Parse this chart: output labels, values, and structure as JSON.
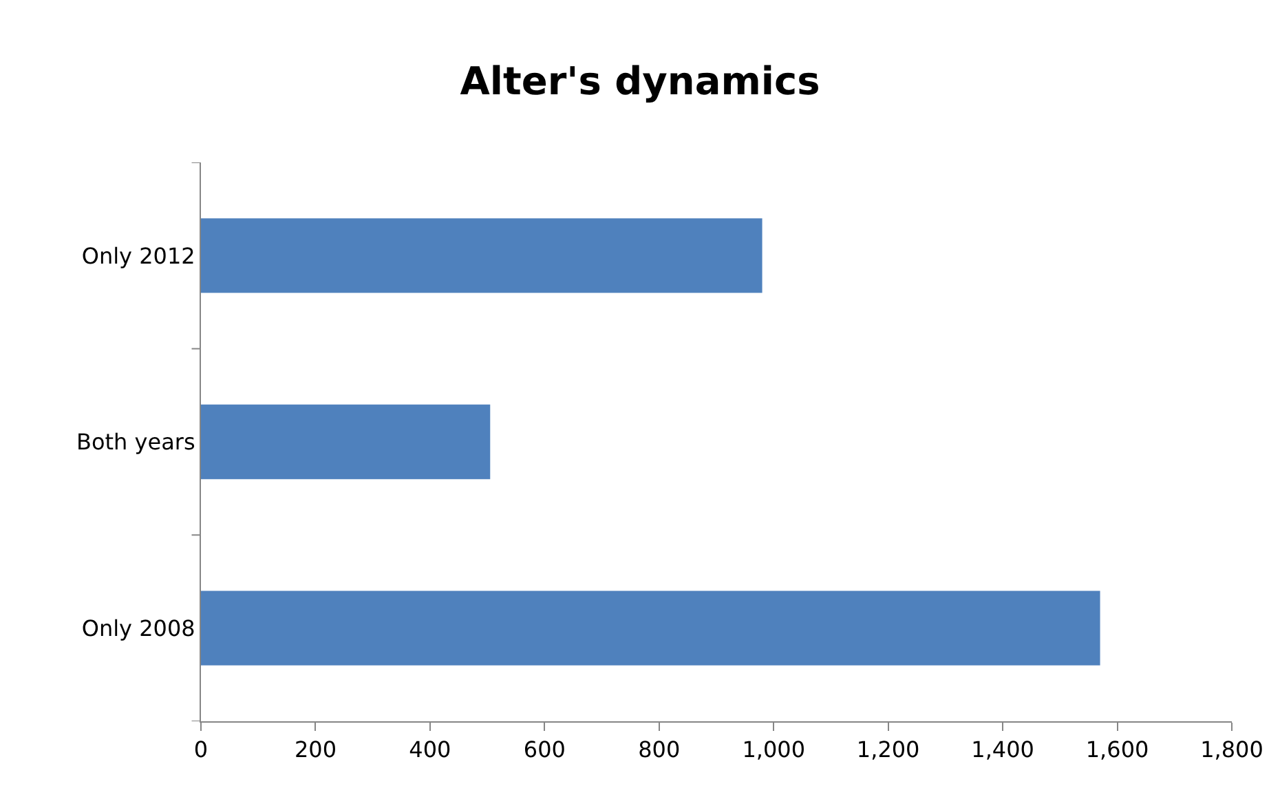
{
  "chart_data": {
    "type": "bar",
    "title": "Alter's dynamics",
    "orientation": "horizontal",
    "categories": [
      "Only 2012",
      "Both years",
      "Only 2008"
    ],
    "values": [
      980,
      505,
      1570
    ],
    "color": "#4f81bd",
    "xlim": [
      0,
      1800
    ],
    "xticks": [
      0,
      {
        "value": 200,
        "label": "200"
      },
      {
        "value": 400,
        "label": "400"
      },
      {
        "value": 600,
        "label": "600"
      },
      {
        "value": 800,
        "label": "800"
      },
      {
        "value": 1000,
        "label": "1,000"
      },
      {
        "value": 1200,
        "label": "1,200"
      },
      {
        "value": 1400,
        "label": "1,400"
      },
      {
        "value": 1600,
        "label": "1,600"
      },
      {
        "value": 1800,
        "label": "1,800"
      }
    ],
    "grid": false,
    "legend": false
  }
}
